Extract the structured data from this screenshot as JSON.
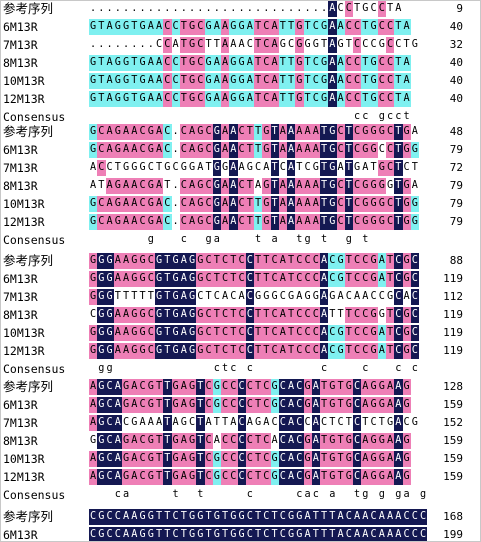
{
  "blocks": [
    {
      "rows": [
        {
          "name": "参考序列",
          "seq": ".............................ACCTGCCTA",
          "end": "9"
        },
        {
          "name": "6M13R",
          "seq": "GTAGGTGAACCTGCGAAGGATCATTGTCGAACCTGCCTA",
          "end": "40"
        },
        {
          "name": "7M13R",
          "seq": "........CCATGCTTAAACTCAGCGGGTAGTCCCGCCTG",
          "end": "32"
        },
        {
          "name": "8M13R",
          "seq": "GTAGGTGAACCTGCGAAGGATCATTGTCGAACCTGCCTA",
          "end": "40"
        },
        {
          "name": "10M13R",
          "seq": "GTAGGTGAACCTGCGAAGGATCATTGTCGAACCTGCCTA",
          "end": "40"
        },
        {
          "name": "12M13R",
          "seq": "GTAGGTGAACCTGCGAAGGATCATTGTCGAACCTGCCTA",
          "end": "40"
        }
      ],
      "consensus": "                                cc gcct  "
    },
    {
      "rows": [
        {
          "name": "参考序列",
          "seq": "GCAGAACGAC.CAGCGAACTTGTAAAAATGCTCGGGCTGA",
          "end": "48"
        },
        {
          "name": "6M13R",
          "seq": "GCAGAACGAC.CAGCGAACTTGTAAAAATGCTCGGCCTGG",
          "end": "79"
        },
        {
          "name": "7M13R",
          "seq": "ACCTGGGCTGCGGATGGAAGCATCATCGTGATGATGCTCT",
          "end": "72"
        },
        {
          "name": "8M13R",
          "seq": "ATAGAACGAT.CAGCGAACTAGTAAAAATGCTCGGGGTGA",
          "end": "79"
        },
        {
          "name": "10M13R",
          "seq": "GCAGAACGAC.CAGCGAACTTGTAAAAATGCTCGGGCTGG",
          "end": "79"
        },
        {
          "name": "12M13R",
          "seq": "GCAGAACGAC.CAGCGAACTTGTAAAAATGCTCGGGCTGG",
          "end": "79"
        }
      ],
      "consensus": "       g   c  ga    t a  tg t  g t      "
    },
    {
      "rows": [
        {
          "name": "参考序列",
          "seq": "GGGAAGGCGTGAGGCTCTCCTTCATCCCACGTCCGATCGC",
          "end": "88"
        },
        {
          "name": "6M13R",
          "seq": "GGGAAGGCGTGAGGCTCTCCTTCATCCCACGTCCGATCGC",
          "end": "119"
        },
        {
          "name": "7M13R",
          "seq": "GGGTTTTTGTGAGCTCACACGGGCGAGGAGACAACCGCAC",
          "end": "112"
        },
        {
          "name": "8M13R",
          "seq": "CGGAAGGCGTGAGGCTCTCCTTCATCCCATTTCCGGTCGC",
          "end": "119"
        },
        {
          "name": "10M13R",
          "seq": "GGGAAGGCGTGAGGCTCTCCTTCATCCCACGTCCGATCGC",
          "end": "119"
        },
        {
          "name": "12M13R",
          "seq": "GGGAAGGCGTGAGGCTCTCCTTCATCCCACGTCCGATCGC",
          "end": "119"
        }
      ],
      "consensus": " gg            ctc c        c    c   c c"
    },
    {
      "rows": [
        {
          "name": "参考序列",
          "seq": "AGCAGACGTTGAGTCGCCCCTCGCACGATGTGCAGGAAG",
          "end": "128"
        },
        {
          "name": "6M13R",
          "seq": "AGCAGACGTTGAGTCGCCCCTCGCACGATGTGCAGGAAG",
          "end": "159"
        },
        {
          "name": "7M13R",
          "seq": "AGCACGAAATAGCTATTACAGACCACCACTCTCTCTGACG",
          "end": "152"
        },
        {
          "name": "8M13R",
          "seq": "GGCAGACGTTGAGTCACCCCTCACACGATGTGCAGGAAG",
          "end": "159"
        },
        {
          "name": "10M13R",
          "seq": "AGCAGACGTTGAGTCGCCCCTCGCACGATGTGCAGGAAG",
          "end": "159"
        },
        {
          "name": "12M13R",
          "seq": "AGCAGACGTTGAGTCGCCCCTCGCACGATGTGCAGGAAG",
          "end": "159"
        }
      ],
      "consensus": "   ca     t  t     c     cac a  tg g ga g"
    },
    {
      "rows": [
        {
          "name": "参考序列",
          "seq": "CGCCAAGGTTCTGGTGTGGCTCTCGGATTTACAACAAACCC",
          "end": "168"
        },
        {
          "name": "6M13R",
          "seq": "CGCCAAGGTTCTGGTGTGGCTCTCGGATTTACAACAAACCC",
          "end": "199"
        }
      ],
      "consensus": ""
    }
  ],
  "consensus_label": "Consensus",
  "colors": {
    "identical": "#141852",
    "high": "#ee7fb6",
    "low": "#7ff0f0",
    "frame": "#c8c8c8"
  }
}
